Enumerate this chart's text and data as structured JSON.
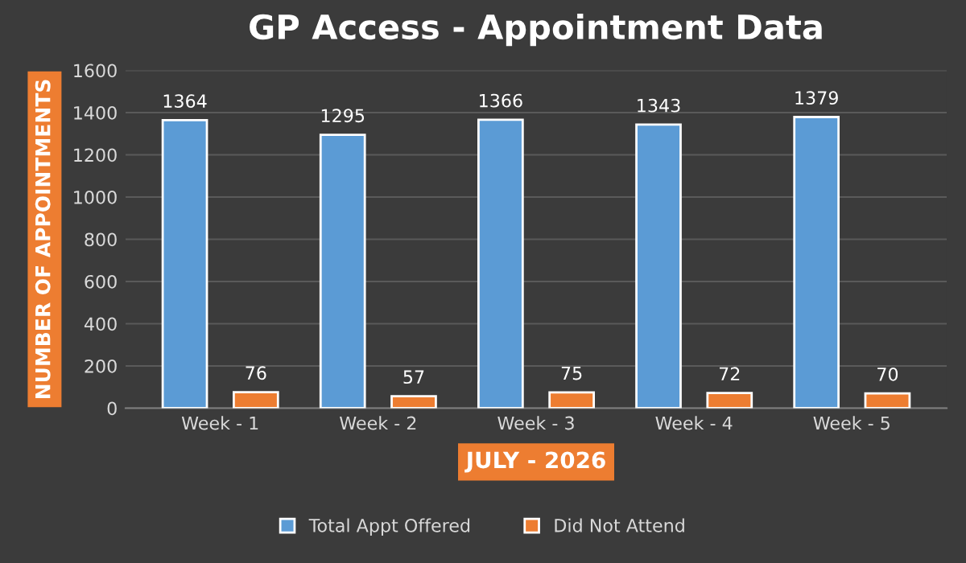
{
  "chart_data": {
    "type": "bar",
    "title": "GP Access - Appointment Data",
    "xlabel": "JULY - 2026",
    "ylabel": "NUMBER OF APPOINTMENTS",
    "categories": [
      "Week - 1",
      "Week - 2",
      "Week - 3",
      "Week - 4",
      "Week - 5"
    ],
    "series": [
      {
        "name": "Total Appt Offered",
        "color": "#5b9bd5",
        "values": [
          1364,
          1295,
          1366,
          1343,
          1379
        ]
      },
      {
        "name": "Did Not Attend",
        "color": "#ed7d31",
        "values": [
          76,
          57,
          75,
          72,
          70
        ]
      }
    ],
    "ylim": [
      0,
      1600
    ],
    "yticks": [
      0,
      200,
      400,
      600,
      800,
      1000,
      1200,
      1400,
      1600
    ],
    "grid": "y",
    "legend": "bottom",
    "data_labels": true
  }
}
